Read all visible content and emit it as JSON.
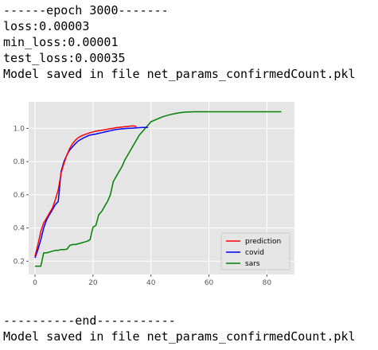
{
  "output": {
    "epoch_header": "------epoch 3000-------",
    "loss": "loss:0.00003",
    "min_loss": "min_loss:0.00001",
    "test_loss": "test_loss:0.00035",
    "saved_top": "Model saved in file net_params_confirmedCount.pkl",
    "end_marker": "----------end-----------",
    "saved_bottom": "Model saved in file net_params_confirmedCount.pkl"
  },
  "chart_data": {
    "type": "line",
    "title": "",
    "xlabel": "",
    "ylabel": "",
    "xlim": [
      -2.2,
      89.5
    ],
    "ylim": [
      0.12,
      1.16
    ],
    "xticks": [
      "0",
      "20",
      "40",
      "60",
      "80"
    ],
    "yticks": [
      "0.2",
      "0.4",
      "0.6",
      "0.8",
      "1.0"
    ],
    "grid": true,
    "background": "#e5e5e5",
    "legend_position": "lower-right",
    "series": [
      {
        "name": "prediction",
        "color": "#ff0000",
        "x": [
          0,
          1,
          2,
          3,
          4,
          5,
          6,
          7,
          8,
          9,
          10,
          11,
          12,
          13,
          14,
          15,
          16,
          17,
          18,
          19,
          20,
          21,
          22,
          23,
          24,
          25,
          26,
          27,
          28,
          29,
          30,
          31,
          32,
          33,
          34,
          35
        ],
        "y": [
          0.23,
          0.3,
          0.38,
          0.43,
          0.46,
          0.49,
          0.52,
          0.57,
          0.63,
          0.73,
          0.79,
          0.84,
          0.88,
          0.91,
          0.93,
          0.945,
          0.955,
          0.962,
          0.968,
          0.974,
          0.979,
          0.983,
          0.986,
          0.989,
          0.992,
          0.995,
          0.998,
          1.001,
          1.004,
          1.006,
          1.008,
          1.01,
          1.012,
          1.014,
          1.015,
          1.01
        ]
      },
      {
        "name": "covid",
        "color": "#0000ff",
        "x": [
          0,
          1,
          2,
          3,
          4,
          5,
          6,
          7,
          8,
          9,
          10,
          11,
          12,
          13,
          14,
          15,
          16,
          17,
          18,
          19,
          20,
          21,
          22,
          23,
          24,
          25,
          26,
          27,
          28,
          29,
          30,
          31,
          32,
          33,
          34,
          35,
          36,
          37,
          38,
          39
        ],
        "y": [
          0.22,
          0.27,
          0.33,
          0.4,
          0.45,
          0.48,
          0.51,
          0.54,
          0.56,
          0.74,
          0.8,
          0.84,
          0.87,
          0.89,
          0.91,
          0.925,
          0.935,
          0.945,
          0.953,
          0.96,
          0.963,
          0.966,
          0.97,
          0.974,
          0.978,
          0.982,
          0.986,
          0.99,
          0.993,
          0.995,
          0.997,
          0.999,
          1.0,
          1.001,
          1.002,
          1.003,
          1.004,
          1.005,
          1.005,
          1.006
        ]
      },
      {
        "name": "sars",
        "color": "#008000",
        "x": [
          0,
          1,
          2,
          3,
          4,
          5,
          6,
          7,
          8,
          9,
          10,
          11,
          12,
          13,
          14,
          15,
          16,
          17,
          18,
          19,
          20,
          21,
          22,
          23,
          24,
          25,
          26,
          27,
          28,
          29,
          30,
          31,
          32,
          33,
          34,
          35,
          36,
          37,
          38,
          39,
          40,
          42,
          44,
          46,
          48,
          50,
          52,
          55,
          60,
          65,
          70,
          75,
          80,
          85
        ],
        "y": [
          0.17,
          0.17,
          0.17,
          0.25,
          0.25,
          0.255,
          0.26,
          0.265,
          0.265,
          0.27,
          0.27,
          0.272,
          0.295,
          0.3,
          0.3,
          0.305,
          0.31,
          0.315,
          0.32,
          0.33,
          0.405,
          0.415,
          0.48,
          0.5,
          0.53,
          0.56,
          0.6,
          0.68,
          0.71,
          0.74,
          0.77,
          0.81,
          0.84,
          0.87,
          0.9,
          0.93,
          0.96,
          0.98,
          1.0,
          1.02,
          1.04,
          1.055,
          1.07,
          1.08,
          1.088,
          1.095,
          1.098,
          1.1,
          1.1,
          1.1,
          1.1,
          1.1,
          1.1,
          1.1
        ]
      }
    ]
  }
}
